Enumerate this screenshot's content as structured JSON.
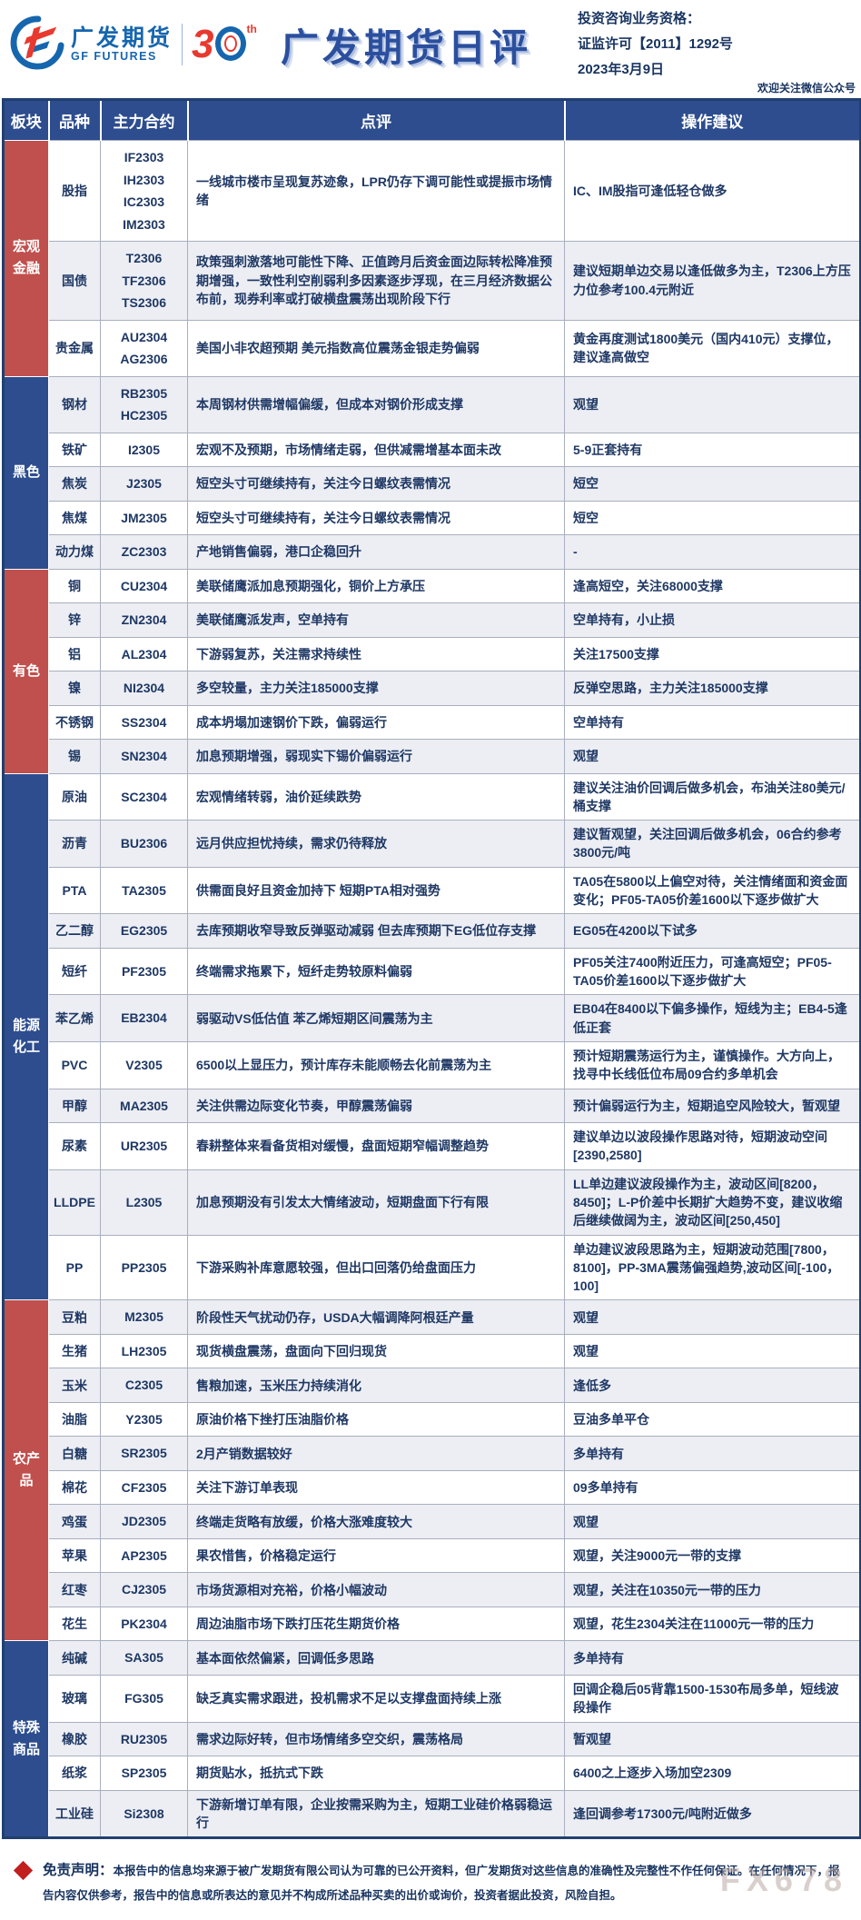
{
  "colors": {
    "header_navy": "#2d4d8e",
    "sector_red": "#c0504d",
    "sector_blue": "#2d4d8e",
    "cell_text_navy": "#1f3864",
    "alt_row": "#eceef4",
    "title_blue": "#2b4f9e",
    "logo_blue": "#1666ae",
    "logo_red": "#e8392f",
    "diamond_red": "#c21f1f"
  },
  "header": {
    "logo_cn": "广发期货",
    "logo_en": "GF FUTURES",
    "anniversary_number_3": "3",
    "anniversary_th": "th",
    "title": "广发期货日评",
    "qualification_line1": "投资咨询业务资格：",
    "qualification_line2": "证监许可【2011】1292号",
    "date": "2023年3月9日",
    "wechat_note": "欢迎关注微信公众号"
  },
  "table": {
    "columns": [
      "板块",
      "品种",
      "主力合约",
      "点评",
      "操作建议"
    ],
    "sections": [
      {
        "name": "宏观金融",
        "color": "red",
        "rows": [
          {
            "variety": "股指",
            "contracts": [
              "IF2303",
              "IH2303",
              "IC2303",
              "IM2303"
            ],
            "comment": "一线城市楼市呈现复苏迹象，LPR仍存下调可能性或提振市场情绪",
            "advice": "IC、IM股指可逢低轻仓做多"
          },
          {
            "variety": "国债",
            "contracts": [
              "T2306",
              "TF2306",
              "TS2306"
            ],
            "comment": "政策强刺激落地可能性下降、正值跨月后资金面边际转松降准预期增强，一致性利空削弱利多因素逐步浮现，在三月经济数据公布前，现券利率或打破横盘震荡出现阶段下行",
            "advice": "建议短期单边交易以逢低做多为主，T2306上方压力位参考100.4元附近"
          },
          {
            "variety": "贵金属",
            "contracts": [
              "AU2304",
              "AG2306"
            ],
            "comment": "美国小非农超预期 美元指数高位震荡金银走势偏弱",
            "advice": "黄金再度测试1800美元（国内410元）支撑位，建议逢高做空"
          }
        ]
      },
      {
        "name": "黑色",
        "color": "blue",
        "rows": [
          {
            "variety": "钢材",
            "contracts": [
              "RB2305",
              "HC2305"
            ],
            "comment": "本周钢材供需增幅偏缓，但成本对钢价形成支撑",
            "advice": "观望"
          },
          {
            "variety": "铁矿",
            "contracts": [
              "I2305"
            ],
            "comment": "宏观不及预期，市场情绪走弱，但供减需增基本面未改",
            "advice": "5-9正套持有"
          },
          {
            "variety": "焦炭",
            "contracts": [
              "J2305"
            ],
            "comment": "短空头寸可继续持有，关注今日螺纹表需情况",
            "advice": "短空"
          },
          {
            "variety": "焦煤",
            "contracts": [
              "JM2305"
            ],
            "comment": "短空头寸可继续持有，关注今日螺纹表需情况",
            "advice": "短空"
          },
          {
            "variety": "动力煤",
            "contracts": [
              "ZC2303"
            ],
            "comment": "产地销售偏弱，港口企稳回升",
            "advice": "-"
          }
        ]
      },
      {
        "name": "有色",
        "color": "red",
        "rows": [
          {
            "variety": "铜",
            "contracts": [
              "CU2304"
            ],
            "comment": "美联储鹰派加息预期强化，铜价上方承压",
            "advice": "逢高短空，关注68000支撑"
          },
          {
            "variety": "锌",
            "contracts": [
              "ZN2304"
            ],
            "comment": "美联储鹰派发声，空单持有",
            "advice": "空单持有，小止损"
          },
          {
            "variety": "铝",
            "contracts": [
              "AL2304"
            ],
            "comment": "下游弱复苏，关注需求持续性",
            "advice": "关注17500支撑"
          },
          {
            "variety": "镍",
            "contracts": [
              "NI2304"
            ],
            "comment": "多空较量，主力关注185000支撑",
            "advice": "反弹空思路，主力关注185000支撑"
          },
          {
            "variety": "不锈钢",
            "contracts": [
              "SS2304"
            ],
            "comment": "成本坍塌加速钢价下跌，偏弱运行",
            "advice": "空单持有"
          },
          {
            "variety": "锡",
            "contracts": [
              "SN2304"
            ],
            "comment": "加息预期增强，弱现实下锡价偏弱运行",
            "advice": "观望"
          }
        ]
      },
      {
        "name": "能源化工",
        "color": "blue",
        "rows": [
          {
            "variety": "原油",
            "contracts": [
              "SC2304"
            ],
            "comment": "宏观情绪转弱，油价延续跌势",
            "advice": "建议关注油价回调后做多机会，布油关注80美元/桶支撑"
          },
          {
            "variety": "沥青",
            "contracts": [
              "BU2306"
            ],
            "comment": "远月供应担忧持续，需求仍待释放",
            "advice": "建议暂观望，关注回调后做多机会，06合约参考3800元/吨"
          },
          {
            "variety": "PTA",
            "contracts": [
              "TA2305"
            ],
            "comment": "供需面良好且资金加持下 短期PTA相对强势",
            "advice": "TA05在5800以上偏空对待，关注情绪面和资金面变化；PF05-TA05价差1600以下逐步做扩大"
          },
          {
            "variety": "乙二醇",
            "contracts": [
              "EG2305"
            ],
            "comment": "去库预期收窄导致反弹驱动减弱 但去库预期下EG低位存支撑",
            "advice": "EG05在4200以下试多"
          },
          {
            "variety": "短纤",
            "contracts": [
              "PF2305"
            ],
            "comment": "终端需求拖累下，短纤走势较原料偏弱",
            "advice": "PF05关注7400附近压力，可逢高短空；PF05-TA05价差1600以下逐步做扩大"
          },
          {
            "variety": "苯乙烯",
            "contracts": [
              "EB2304"
            ],
            "comment": "弱驱动VS低估值 苯乙烯短期区间震荡为主",
            "advice": "EB04在8400以下偏多操作，短线为主；EB4-5逢低正套"
          },
          {
            "variety": "PVC",
            "contracts": [
              "V2305"
            ],
            "comment": "6500以上显压力，预计库存未能顺畅去化前震荡为主",
            "advice": "预计短期震荡运行为主，谨慎操作。大方向上，找寻中长线低位布局09合约多单机会"
          },
          {
            "variety": "甲醇",
            "contracts": [
              "MA2305"
            ],
            "comment": "关注供需边际变化节奏，甲醇震荡偏弱",
            "advice": "预计偏弱运行为主，短期追空风险较大，暂观望"
          },
          {
            "variety": "尿素",
            "contracts": [
              "UR2305"
            ],
            "comment": "春耕整体来看备货相对缓慢，盘面短期窄幅调整趋势",
            "advice": "建议单边以波段操作思路对待，短期波动空间[2390,2580]"
          },
          {
            "variety": "LLDPE",
            "contracts": [
              "L2305"
            ],
            "comment": "加息预期没有引发太大情绪波动，短期盘面下行有限",
            "advice": "LL单边建议波段操作为主，波动区间[8200，8450]；L-P价差中长期扩大趋势不变，建议收缩后继续做阔为主，波动区间[250,450]"
          },
          {
            "variety": "PP",
            "contracts": [
              "PP2305"
            ],
            "comment": "下游采购补库意愿较强，但出口回落仍给盘面压力",
            "advice": "单边建议波段思路为主，短期波动范围[7800，8100]，PP-3MA震荡偏强趋势,波动区间[-100，100]"
          }
        ]
      },
      {
        "name": "农产品",
        "color": "red",
        "rows": [
          {
            "variety": "豆粕",
            "contracts": [
              "M2305"
            ],
            "comment": "阶段性天气扰动仍存，USDA大幅调降阿根廷产量",
            "advice": "观望"
          },
          {
            "variety": "生猪",
            "contracts": [
              "LH2305"
            ],
            "comment": "现货横盘震荡，盘面向下回归现货",
            "advice": "观望"
          },
          {
            "variety": "玉米",
            "contracts": [
              "C2305"
            ],
            "comment": "售粮加速，玉米压力持续消化",
            "advice": "逢低多"
          },
          {
            "variety": "油脂",
            "contracts": [
              "Y2305"
            ],
            "comment": "原油价格下挫打压油脂价格",
            "advice": "豆油多单平仓"
          },
          {
            "variety": "白糖",
            "contracts": [
              "SR2305"
            ],
            "comment": "2月产销数据较好",
            "advice": "多单持有"
          },
          {
            "variety": "棉花",
            "contracts": [
              "CF2305"
            ],
            "comment": "关注下游订单表现",
            "advice": "09多单持有"
          },
          {
            "variety": "鸡蛋",
            "contracts": [
              "JD2305"
            ],
            "comment": "终端走货略有放缓，价格大涨难度较大",
            "advice": "观望"
          },
          {
            "variety": "苹果",
            "contracts": [
              "AP2305"
            ],
            "comment": "果农惜售，价格稳定运行",
            "advice": "观望，关注9000元一带的支撑"
          },
          {
            "variety": "红枣",
            "contracts": [
              "CJ2305"
            ],
            "comment": "市场货源相对充裕，价格小幅波动",
            "advice": "观望，关注在10350元一带的压力"
          },
          {
            "variety": "花生",
            "contracts": [
              "PK2304"
            ],
            "comment": "周边油脂市场下跌打压花生期货价格",
            "advice": "观望，花生2304关注在11000元一带的压力"
          }
        ]
      },
      {
        "name": "特殊商品",
        "color": "blue",
        "rows": [
          {
            "variety": "纯碱",
            "contracts": [
              "SA305"
            ],
            "comment": "基本面依然偏紧，回调低多思路",
            "advice": "多单持有"
          },
          {
            "variety": "玻璃",
            "contracts": [
              "FG305"
            ],
            "comment": "缺乏真实需求跟进，投机需求不足以支撑盘面持续上涨",
            "advice": "回调企稳后05背靠1500-1530布局多单，短线波段操作"
          },
          {
            "variety": "橡胶",
            "contracts": [
              "RU2305"
            ],
            "comment": "需求边际好转，但市场情绪多空交织，震荡格局",
            "advice": "暂观望"
          },
          {
            "variety": "纸浆",
            "contracts": [
              "SP2305"
            ],
            "comment": "期货贴水，抵抗式下跌",
            "advice": "6400之上逐步入场加空2309"
          },
          {
            "variety": "工业硅",
            "contracts": [
              "Si2308"
            ],
            "comment": "下游新增订单有限，企业按需采购为主，短期工业硅价格弱稳运行",
            "advice": "逢回调参考17300元/吨附近做多"
          }
        ]
      }
    ]
  },
  "footer": {
    "disclaimer_label": "免责声明：",
    "disclaimer_text": "本报告中的信息均来源于被广发期货有限公司认为可靠的已公开资料，但广发期货对这些信息的准确性及完整性不作任何保证。在任何情况下，报告内容仅供参考，报告中的信息或所表达的意见并不构成所述品种买卖的出价或询价，投资者据此投资，风险自担。",
    "watermark": "FX678"
  }
}
